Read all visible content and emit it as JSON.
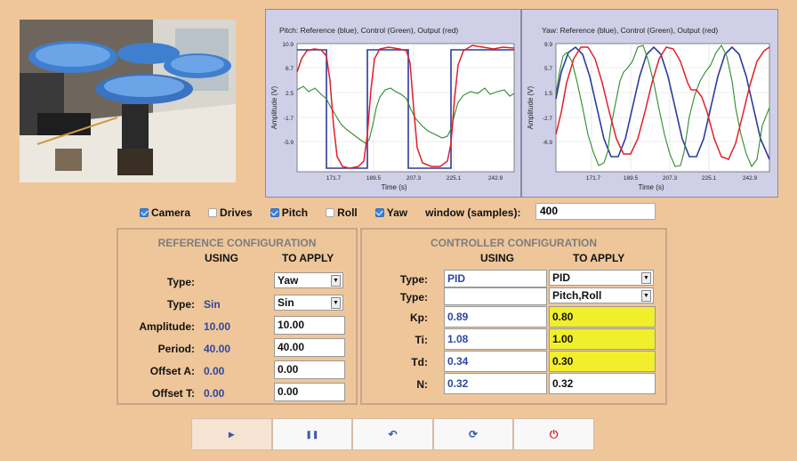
{
  "colors": {
    "accent": "#3b82e0",
    "reference": "#2b3b9c",
    "control": "#2e8b2e",
    "output": "#e0202a",
    "highlight": "#f1ef2c"
  },
  "camera": {
    "icon": "camera-feed-image"
  },
  "pitch_plot": {
    "title": "Pitch: Reference (blue), Control (Green), Output (red)",
    "ylabel": "Amplitude (V)",
    "xlabel": "Time (s)",
    "yticks": [
      "10.9",
      "6.7",
      "2.5",
      "-1.7",
      "-5.9"
    ],
    "xticks": [
      "171.7",
      "189.5",
      "207.3",
      "225.1",
      "242.9"
    ]
  },
  "yaw_plot": {
    "title": "Yaw: Reference (blue), Control (Green), Output (red)",
    "ylabel": "Amplitude (V)",
    "xlabel": "Time (s)",
    "yticks": [
      "9.9",
      "5.7",
      "1.5",
      "-2.7",
      "-6.9"
    ],
    "xticks": [
      "171.7",
      "189.5",
      "207.3",
      "225.1",
      "242.9"
    ]
  },
  "options": {
    "camera": {
      "label": "Camera",
      "checked": true
    },
    "drives": {
      "label": "Drives",
      "checked": false
    },
    "pitch": {
      "label": "Pitch",
      "checked": true
    },
    "roll": {
      "label": "Roll",
      "checked": false
    },
    "yaw": {
      "label": "Yaw",
      "checked": true
    },
    "window_label": "window (samples):",
    "window_value": "400"
  },
  "reference": {
    "title": "REFERENCE CONFIGURATION",
    "using_header": "USING",
    "apply_header": "TO APPLY",
    "rows": [
      {
        "label": "Type:",
        "using": "",
        "apply": "Yaw"
      },
      {
        "label": "Type:",
        "using": "Sin",
        "apply": "Sin"
      },
      {
        "label": "Amplitude:",
        "using": "10.00",
        "apply": "10.00"
      },
      {
        "label": "Period:",
        "using": "40.00",
        "apply": "40.00"
      },
      {
        "label": "Offset A:",
        "using": "0.00",
        "apply": "0.00"
      },
      {
        "label": "Offset T:",
        "using": "0.00",
        "apply": "0.00"
      }
    ]
  },
  "controller": {
    "title": "CONTROLLER CONFIGURATION",
    "using_header": "USING",
    "apply_header": "TO APPLY",
    "rows": [
      {
        "label": "Type:",
        "using": "PID",
        "apply": "PID"
      },
      {
        "label": "Type:",
        "using": "",
        "apply": "Pitch,Roll"
      },
      {
        "label": "Kp:",
        "using": "0.89",
        "apply": "0.80"
      },
      {
        "label": "Ti:",
        "using": "1.08",
        "apply": "1.00"
      },
      {
        "label": "Td:",
        "using": "0.34",
        "apply": "0.30"
      },
      {
        "label": "N:",
        "using": "0.32",
        "apply": "0.32"
      }
    ]
  },
  "toolbar": {
    "play": "▶",
    "pause": "❚❚",
    "reset": "↶",
    "refresh": "⟳",
    "power": "⏻"
  }
}
